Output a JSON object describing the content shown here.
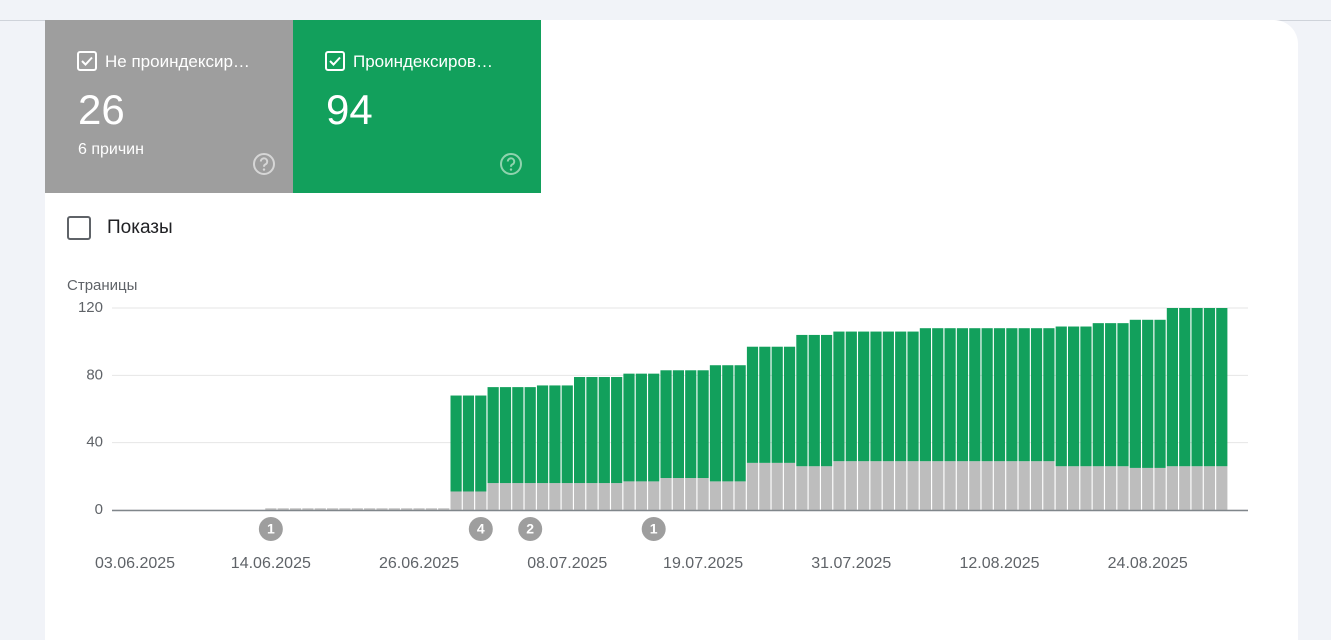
{
  "cards": [
    {
      "sub": "6 причин",
      "value": 26
    },
    {
      "value": 94
    }
  ],
  "toggle": "Показы",
  "chart_data": {
    "type": "bar",
    "stacked": true,
    "y_label": "Страницы",
    "categories": [
      "03.06.2025",
      null,
      null,
      null,
      null,
      null,
      null,
      null,
      null,
      null,
      null,
      "14.06.2025",
      null,
      null,
      null,
      null,
      null,
      null,
      null,
      null,
      null,
      null,
      null,
      "26.06.2025",
      null,
      null,
      null,
      null,
      null,
      null,
      null,
      null,
      null,
      null,
      null,
      "08.07.2025",
      null,
      null,
      null,
      null,
      null,
      null,
      null,
      null,
      null,
      null,
      "19.07.2025",
      null,
      null,
      null,
      null,
      null,
      null,
      null,
      null,
      null,
      null,
      null,
      "31.07.2025",
      null,
      null,
      null,
      null,
      null,
      null,
      null,
      null,
      null,
      null,
      null,
      "12.08.2025",
      null,
      null,
      null,
      null,
      null,
      null,
      null,
      null,
      null,
      null,
      null,
      "24.08.2025",
      null,
      null,
      null,
      null,
      null,
      null
    ],
    "series": [
      {
        "name": "Не проиндексир…",
        "color": "#bdbdbd",
        "values": [
          0,
          0,
          0,
          0,
          0,
          0,
          0,
          0,
          0,
          0,
          0,
          1,
          1,
          1,
          1,
          1,
          1,
          1,
          1,
          1,
          1,
          1,
          1,
          1,
          1,
          1,
          11,
          11,
          11,
          16,
          16,
          16,
          16,
          16,
          16,
          16,
          16,
          16,
          16,
          16,
          17,
          17,
          17,
          19,
          19,
          19,
          19,
          17,
          17,
          17,
          28,
          28,
          28,
          28,
          26,
          26,
          26,
          29,
          29,
          29,
          29,
          29,
          29,
          29,
          29,
          29,
          29,
          29,
          29,
          29,
          29,
          29,
          29,
          29,
          29,
          26,
          26,
          26,
          26,
          26,
          26,
          25,
          25,
          25,
          26,
          26,
          26,
          26,
          26
        ]
      },
      {
        "name": "Проиндексиров…",
        "color": "#12a05c",
        "values": [
          0,
          0,
          0,
          0,
          0,
          0,
          0,
          0,
          0,
          0,
          0,
          0,
          0,
          0,
          0,
          0,
          0,
          0,
          0,
          0,
          0,
          0,
          0,
          0,
          0,
          0,
          57,
          57,
          57,
          57,
          57,
          57,
          57,
          58,
          58,
          58,
          63,
          63,
          63,
          63,
          64,
          64,
          64,
          64,
          64,
          64,
          64,
          69,
          69,
          69,
          69,
          69,
          69,
          69,
          78,
          78,
          78,
          77,
          77,
          77,
          77,
          77,
          77,
          77,
          79,
          79,
          79,
          79,
          79,
          79,
          79,
          79,
          79,
          79,
          79,
          83,
          83,
          83,
          85,
          85,
          85,
          88,
          88,
          88,
          94,
          94,
          94,
          94,
          94
        ]
      }
    ],
    "ylim": [
      0,
      120
    ],
    "yticks": [
      0,
      40,
      80,
      120
    ],
    "grid": true,
    "annotations": [
      {
        "label": "1"
      },
      {
        "label": "4"
      },
      {
        "label": "2"
      },
      {
        "label": "1"
      }
    ]
  }
}
